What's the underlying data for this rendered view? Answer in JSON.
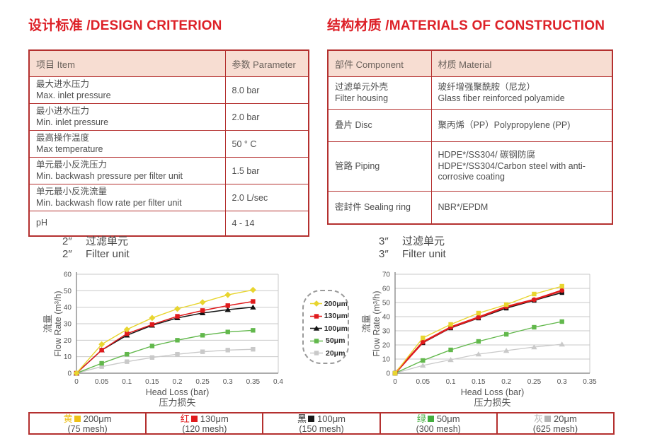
{
  "design": {
    "title": "设计标准 /DESIGN CRITERION",
    "headers": [
      "项目 Item",
      "参数 Parameter"
    ],
    "rows": [
      {
        "zh": "最大进水压力",
        "en": "Max. inlet pressure",
        "value": "8.0 bar"
      },
      {
        "zh": "最小进水压力",
        "en": "Min. inlet pressure",
        "value": "2.0 bar"
      },
      {
        "zh": "最高操作温度",
        "en": "Max temperature",
        "value": "50 ° C"
      },
      {
        "zh": "单元最小反洗压力",
        "en": "Min. backwash pressure per filter unit",
        "value": "1.5 bar"
      },
      {
        "zh": "单元最小反洗流量",
        "en": "Min. backwash flow rate per filter unit",
        "value": "2.0 L/sec"
      },
      {
        "zh": "pH",
        "en": "",
        "value": "4 - 14"
      }
    ]
  },
  "materials": {
    "title": "结构材质 /MATERIALS OF CONSTRUCTION",
    "headers": [
      "部件 Component",
      "材质 Material"
    ],
    "rows": [
      {
        "c1": "过滤单元外壳",
        "c2": "Filter housing",
        "m1": "玻纤增强聚酰胺（尼龙）",
        "m2": "Glass fiber reinforced polyamide"
      },
      {
        "c1": "叠片 Disc",
        "c2": "",
        "m1": "聚丙烯（PP）Polypropylene (PP)",
        "m2": ""
      },
      {
        "c1": "管路 Piping",
        "c2": "",
        "m1": "HDPE*/SS304/ 碳钢防腐",
        "m2": "HDPE*/SS304/Carbon steel with anti-corrosive coating"
      },
      {
        "c1": "密封件 Sealing ring",
        "c2": "",
        "m1": "NBR*/EPDM",
        "m2": ""
      }
    ]
  },
  "chart_titles": {
    "left_prefix": "2″",
    "left_zh": "过滤单元",
    "left_en": "Filter unit",
    "right_prefix": "3″",
    "right_zh": "过滤单元",
    "right_en": "Filter unit"
  },
  "chart_data": [
    {
      "type": "line",
      "title": "2″ 过滤单元 / 2″ Filter unit",
      "xlabel": "Head Loss (bar)",
      "xlabel_zh": "压力损失",
      "ylabel_zh": "流量",
      "ylabel": "Flow Rate (m³/h)",
      "xlim": [
        0,
        0.4
      ],
      "ylim": [
        0,
        60
      ],
      "xticks": [
        "0",
        "0.05",
        "0.1",
        "0.15",
        "0.2",
        "0.25",
        "0.3",
        "0.35",
        "0.4"
      ],
      "yticks": [
        0,
        10,
        20,
        30,
        40,
        50,
        60
      ],
      "grid": "horizontal",
      "x": [
        0,
        0.05,
        0.1,
        0.15,
        0.2,
        0.25,
        0.3,
        0.35
      ],
      "series": [
        {
          "name": "200μm",
          "color": "#e8d52f",
          "marker": "diamond",
          "width": 1.4,
          "values": [
            0,
            17.5,
            26.5,
            33.5,
            39,
            43,
            47.5,
            50.5
          ]
        },
        {
          "name": "130μm",
          "color": "#e01b1d",
          "marker": "square",
          "width": 1.5,
          "values": [
            0,
            14,
            24,
            29.5,
            34.5,
            38,
            41,
            43.5
          ]
        },
        {
          "name": "100μm",
          "color": "#141414",
          "marker": "triangle",
          "width": 1.5,
          "values": [
            0,
            14,
            23,
            29,
            33.5,
            36.5,
            38.5,
            40
          ]
        },
        {
          "name": "50μm",
          "color": "#62b84c",
          "marker": "square",
          "width": 1.4,
          "values": [
            0,
            6,
            11.5,
            16.5,
            20,
            23,
            25,
            26
          ]
        },
        {
          "name": "20μm",
          "color": "#c9c9c9",
          "marker": "square",
          "width": 1.4,
          "values": [
            0,
            4,
            7,
            9.5,
            11.5,
            13,
            14,
            14.5
          ]
        }
      ]
    },
    {
      "type": "line",
      "title": "3″ 过滤单元 / 3″ Filter unit",
      "xlabel": "Head Loss (bar)",
      "xlabel_zh": "压力损失",
      "ylabel_zh": "流量",
      "ylabel": "Flow Rate (m³/h)",
      "xlim": [
        0,
        0.35
      ],
      "ylim": [
        0,
        70
      ],
      "xticks": [
        "0",
        "0.05",
        "0.1",
        "0.15",
        "0.2",
        "0.25",
        "0.3",
        "0.35"
      ],
      "yticks": [
        0,
        10,
        20,
        30,
        40,
        50,
        60,
        70
      ],
      "grid": "horizontal",
      "x": [
        0,
        0.05,
        0.1,
        0.15,
        0.2,
        0.25,
        0.3
      ],
      "series": [
        {
          "name": "200μm",
          "color": "#e8d52f",
          "marker": "square",
          "width": 1.4,
          "values": [
            0,
            25,
            34.5,
            42.5,
            48.5,
            56,
            61.5
          ]
        },
        {
          "name": "130μm",
          "color": "#e01b1d",
          "marker": "circle",
          "width": 2.6,
          "values": [
            0,
            22,
            32.5,
            39.5,
            47,
            52,
            58.5
          ]
        },
        {
          "name": "100μm",
          "color": "#141414",
          "marker": "square",
          "width": 1.5,
          "values": [
            0,
            21.5,
            32,
            39,
            46,
            51.5,
            57
          ]
        },
        {
          "name": "50μm",
          "color": "#62b84c",
          "marker": "square",
          "width": 1.4,
          "values": [
            0,
            9,
            16.5,
            22.5,
            27.5,
            32.5,
            36.5
          ]
        },
        {
          "name": "20μm",
          "color": "#c9c9c9",
          "marker": "triangle",
          "width": 1.2,
          "values": [
            0,
            5.5,
            9.5,
            13.5,
            16,
            18.5,
            20.5
          ]
        }
      ]
    }
  ],
  "chart_legend": {
    "entries": [
      {
        "label": "200μm",
        "color": "#e8d52f",
        "marker": "diamond"
      },
      {
        "label": "130μm",
        "color": "#e01b1d",
        "marker": "square"
      },
      {
        "label": "100μm",
        "color": "#141414",
        "marker": "triangle"
      },
      {
        "label": "50μm",
        "color": "#62b84c",
        "marker": "square"
      },
      {
        "label": "20μm",
        "color": "#c9c9c9",
        "marker": "square"
      }
    ]
  },
  "mesh_legend": {
    "cells": [
      {
        "zh": "黄",
        "color": "#eec117",
        "size": "200μm",
        "mesh": "(75 mesh)"
      },
      {
        "zh": "红",
        "color": "#e01b1d",
        "size": "130μm",
        "mesh": "(120 mesh)"
      },
      {
        "zh": "黑",
        "color": "#1a1a1a",
        "size": "100μm",
        "mesh": "(150 mesh)"
      },
      {
        "zh": "绿",
        "color": "#44ad3f",
        "size": "50μm",
        "mesh": "(300 mesh)"
      },
      {
        "zh": "灰",
        "color": "#b5b5b5",
        "size": "20μm",
        "mesh": "(625 mesh)"
      }
    ]
  },
  "colors": {
    "title_red": "#dd2128",
    "border_red": "#b4302f",
    "header_bg": "#f7ddd2"
  }
}
